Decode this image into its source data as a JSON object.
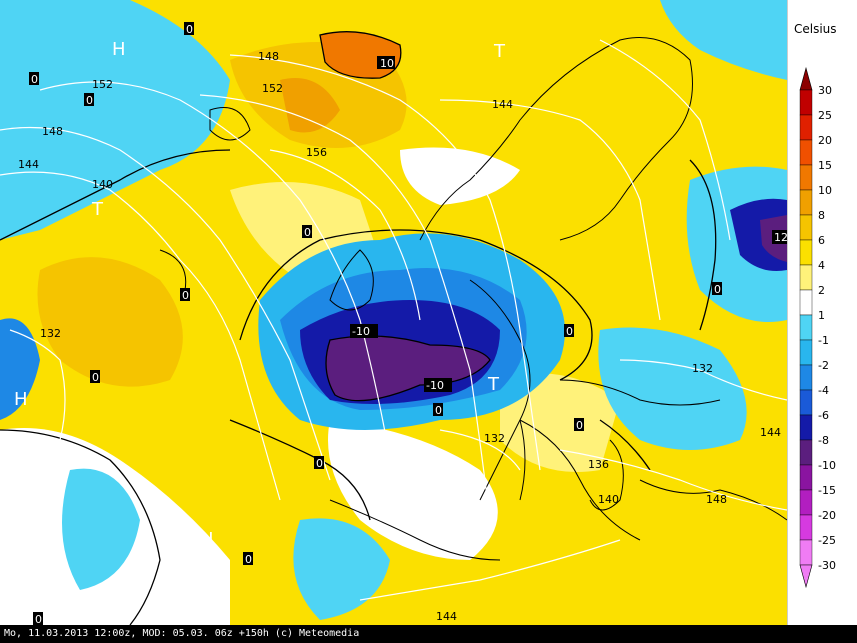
{
  "legend": {
    "title": "Celsius",
    "levels": [
      "30",
      "25",
      "20",
      "15",
      "10",
      "8",
      "6",
      "4",
      "2",
      "1",
      "-1",
      "-2",
      "-4",
      "-6",
      "-8",
      "-10",
      "-15",
      "-20",
      "-25",
      "-30"
    ],
    "colors": [
      "#8b0000",
      "#c00000",
      "#e02000",
      "#f05000",
      "#f07800",
      "#f0a000",
      "#f5c400",
      "#fbe000",
      "#fff27a",
      "#ffffff",
      "#4fd4f4",
      "#29b6ee",
      "#1e88e5",
      "#1a5ad8",
      "#141aa8",
      "#5b1e7e",
      "#8a14a0",
      "#b21ec0",
      "#d63ae0",
      "#f07cf4"
    ]
  },
  "isobars": {
    "labels": [
      "148",
      "152",
      "144",
      "148",
      "144",
      "140",
      "152",
      "156",
      "132",
      "132",
      "132",
      "144",
      "136",
      "140",
      "148",
      "144"
    ]
  },
  "temperature_labels": [
    "10",
    "-10",
    "-10",
    "12",
    "0",
    "0",
    "0",
    "0",
    "0",
    "0",
    "0",
    "0",
    "0",
    "0",
    "0",
    "0",
    "0"
  ],
  "pressure_systems": [
    "H",
    "T",
    "T",
    "T",
    "H",
    "H"
  ],
  "footer": {
    "text": "Mo, 11.03.2013 12:00z, MOD: 05.03. 06z +150h (c) Meteomedia"
  }
}
